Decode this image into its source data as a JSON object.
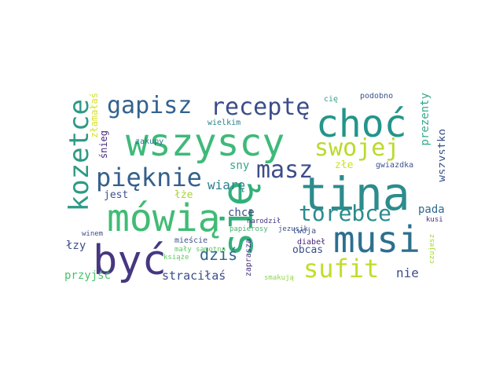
{
  "word_cloud": {
    "words": [
      {
        "text": "się",
        "color": "#30b07a"
      },
      {
        "text": "tina",
        "color": "#2d8c8c"
      },
      {
        "text": "wszyscy",
        "color": "#3fb97a"
      },
      {
        "text": "choć",
        "color": "#23958a"
      },
      {
        "text": "być",
        "color": "#463780"
      },
      {
        "text": "mówią",
        "color": "#40bc74"
      },
      {
        "text": "musi",
        "color": "#2c6f8e"
      },
      {
        "text": "kozetce",
        "color": "#2c9a85"
      },
      {
        "text": "gapisz",
        "color": "#33628d"
      },
      {
        "text": "receptę",
        "color": "#3a4d8a"
      },
      {
        "text": "pięknie",
        "color": "#35608d"
      },
      {
        "text": "swojej",
        "color": "#bada2c"
      },
      {
        "text": "masz",
        "color": "#3d4d8a"
      },
      {
        "text": "torebce",
        "color": "#2b8c8d"
      },
      {
        "text": "sufit",
        "color": "#c3dc2a"
      },
      {
        "text": "sny",
        "color": "#3aa58a"
      },
      {
        "text": "wiarę",
        "color": "#2b7f8e"
      },
      {
        "text": "dziś",
        "color": "#30678e"
      },
      {
        "text": "straciłaś",
        "color": "#3b4e8a"
      },
      {
        "text": "nie",
        "color": "#3d4d8a"
      },
      {
        "text": "prezenty",
        "color": "#36a988"
      },
      {
        "text": "wszystko",
        "color": "#3b528b"
      },
      {
        "text": "pada",
        "color": "#2f6b8e"
      },
      {
        "text": "chce",
        "color": "#3d4d8a"
      },
      {
        "text": "łzy",
        "color": "#3d4d8a"
      },
      {
        "text": "przyjść",
        "color": "#4ac16d"
      },
      {
        "text": "obcas",
        "color": "#3b4e8a"
      },
      {
        "text": "jest",
        "color": "#3b528b"
      },
      {
        "text": "łże",
        "color": "#a9d43a"
      },
      {
        "text": "złe",
        "color": "#cfe02b"
      },
      {
        "text": "śnieg",
        "color": "#482979"
      },
      {
        "text": "złamałaś",
        "color": "#d6e22b"
      },
      {
        "text": "zakupy",
        "color": "#2a768e"
      },
      {
        "text": "wielkim",
        "color": "#26828e"
      },
      {
        "text": "cię",
        "color": "#2e9e86"
      },
      {
        "text": "podobno",
        "color": "#3b528b"
      },
      {
        "text": "gwiazdka",
        "color": "#3b528b"
      },
      {
        "text": "papierosy",
        "color": "#4ab36e"
      },
      {
        "text": "jezusik",
        "color": "#3b528b"
      },
      {
        "text": "diabeł",
        "color": "#482677"
      },
      {
        "text": "narodził",
        "color": "#463480"
      },
      {
        "text": "kusi",
        "color": "#463480"
      },
      {
        "text": "twoja",
        "color": "#3b528b"
      },
      {
        "text": "mieście",
        "color": "#3b528b"
      },
      {
        "text": "mały samotna",
        "color": "#5cc863"
      },
      {
        "text": "winem",
        "color": "#3e4c8a"
      },
      {
        "text": "książe",
        "color": "#5ec962"
      },
      {
        "text": "zaprasza",
        "color": "#46307e"
      },
      {
        "text": "smakują",
        "color": "#8fd744"
      },
      {
        "text": "czujesz",
        "color": "#a2da37"
      }
    ]
  }
}
